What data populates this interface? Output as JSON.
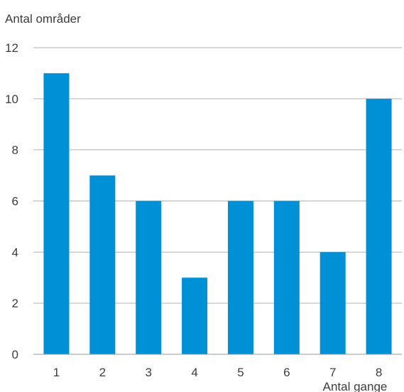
{
  "chart_data": {
    "type": "bar",
    "title": "",
    "ylabel": "Antal områder",
    "xlabel": "Antal gange",
    "categories": [
      "1",
      "2",
      "3",
      "4",
      "5",
      "6",
      "7",
      "8"
    ],
    "values": [
      11,
      7,
      6,
      3,
      6,
      6,
      4,
      10
    ],
    "ylim": [
      0,
      12
    ],
    "yticks": [
      "0",
      "2",
      "4",
      "6",
      "8",
      "10",
      "12"
    ],
    "grid": true,
    "bar_color": "#0090d6",
    "grid_color": "#b3b3b3",
    "axis_color": "#9a9a9a"
  }
}
